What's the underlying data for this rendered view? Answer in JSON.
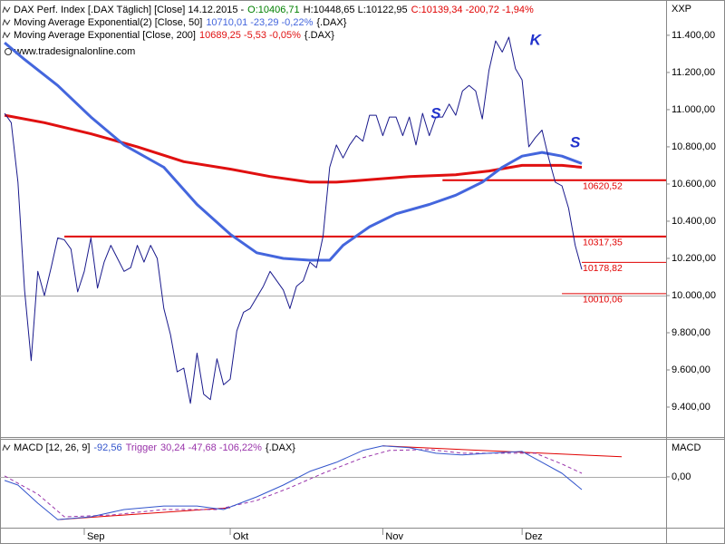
{
  "chart_data": [
    {
      "type": "line",
      "unit": "XXP",
      "source": "www.tradesignalonline.com",
      "xlim": [
        -0.7,
        99.7
      ],
      "ylim": [
        9244,
        11580
      ],
      "yticks": [
        {
          "value": 9400,
          "label": "9.400,00"
        },
        {
          "value": 9600,
          "label": "9.600,00"
        },
        {
          "value": 9800,
          "label": "9.800,00"
        },
        {
          "value": 10000,
          "label": "10.000,00"
        },
        {
          "value": 10200,
          "label": "10.200,00"
        },
        {
          "value": 10400,
          "label": "10.400,00"
        },
        {
          "value": 10600,
          "label": "10.600,00"
        },
        {
          "value": 10800,
          "label": "10.800,00"
        },
        {
          "value": 11000,
          "label": "11.000,00"
        },
        {
          "value": 11200,
          "label": "11.200,00"
        },
        {
          "value": 11400,
          "label": "11.400,00"
        }
      ],
      "reference_lines": [
        10000
      ],
      "series": [
        {
          "name": "DAX Perf. Index [.DAX  Täglich] [Close] 14.12.2015 -",
          "color": "#1a1a8c",
          "linewidth": 1,
          "legend_parts": [
            {
              "text": "O:10406,71",
              "color": "#008000"
            },
            {
              "text": "H:10448,65 L:10122,95",
              "color": "#000000"
            },
            {
              "text": "C:10139,34 -200,72 -1,94%",
              "color": "#e00000"
            }
          ],
          "values": [
            10980,
            10930,
            10610,
            10030,
            9650,
            10130,
            10000,
            10150,
            10310,
            10300,
            10250,
            10020,
            10130,
            10310,
            10040,
            10180,
            10270,
            10200,
            10130,
            10150,
            10270,
            10180,
            10270,
            10200,
            9930,
            9790,
            9590,
            9610,
            9420,
            9690,
            9470,
            9440,
            9660,
            9520,
            9550,
            9810,
            9910,
            9930,
            9990,
            10050,
            10130,
            10080,
            10030,
            9930,
            10050,
            10080,
            10180,
            10150,
            10320,
            10690,
            10810,
            10740,
            10810,
            10860,
            10830,
            10970,
            10970,
            10860,
            10960,
            10960,
            10860,
            10960,
            10810,
            10980,
            10860,
            10960,
            10960,
            11030,
            10970,
            11100,
            11130,
            11100,
            10950,
            11210,
            11370,
            11310,
            11390,
            11220,
            11160,
            10800,
            10850,
            10890,
            10740,
            10610,
            10590,
            10470,
            10270,
            10140
          ]
        },
        {
          "name": "Moving Average Exponential(2) [Close, 50]",
          "color": "#4466dd",
          "linewidth": 3,
          "legend_parts": [
            {
              "text": "10710,01 -23,29 -0,22%",
              "color": "#4466dd"
            },
            {
              "text": "{.DAX}",
              "color": "#000000"
            }
          ],
          "x": [
            0,
            3,
            8,
            13,
            18,
            24,
            29,
            34,
            38,
            42,
            46,
            49,
            51,
            55,
            59,
            64,
            68,
            72,
            75,
            78,
            81,
            84,
            87
          ],
          "values": [
            11360,
            11270,
            11130,
            10960,
            10810,
            10690,
            10490,
            10330,
            10230,
            10200,
            10190,
            10190,
            10270,
            10370,
            10440,
            10490,
            10540,
            10610,
            10690,
            10750,
            10770,
            10750,
            10710
          ]
        },
        {
          "name": "Moving Average Exponential [Close, 200]",
          "color": "#e01010",
          "linewidth": 3,
          "legend_parts": [
            {
              "text": "10689,25 -5,53 -0,05%",
              "color": "#e01010"
            },
            {
              "text": "{.DAX}",
              "color": "#000000"
            }
          ],
          "x": [
            0,
            6,
            13,
            20,
            27,
            34,
            40,
            46,
            50,
            54,
            61,
            68,
            73,
            78,
            81,
            84,
            87
          ],
          "values": [
            10970,
            10930,
            10870,
            10800,
            10720,
            10680,
            10640,
            10610,
            10610,
            10620,
            10640,
            10650,
            10670,
            10700,
            10700,
            10700,
            10690
          ]
        }
      ],
      "levels": [
        {
          "value": 10620.52,
          "label": "10620,52",
          "x_start": 66,
          "linewidth": 2
        },
        {
          "value": 10317.35,
          "label": "10317,35",
          "x_start": 9,
          "linewidth": 2
        },
        {
          "value": 10178.82,
          "label": "10178,82",
          "x_start": 87,
          "linewidth": 1
        },
        {
          "value": 10010.06,
          "label": "10010,06",
          "x_start": 84,
          "linewidth": 1
        }
      ],
      "annotations": [
        {
          "text": "S",
          "x": 65,
          "y": 10975
        },
        {
          "text": "K",
          "x": 80,
          "y": 11370
        },
        {
          "text": "S",
          "x": 86,
          "y": 10820
        }
      ]
    },
    {
      "type": "line",
      "axis_label": "MACD",
      "xlim": [
        -0.7,
        99.7
      ],
      "ylim": [
        -370,
        270
      ],
      "yticks": [
        {
          "value": 0,
          "label": "0,00"
        }
      ],
      "reference_lines": [
        0
      ],
      "xticks": [
        {
          "value": 12,
          "label": "Sep"
        },
        {
          "value": 34,
          "label": "Okt"
        },
        {
          "value": 57,
          "label": "Nov"
        },
        {
          "value": 78,
          "label": "Dez"
        }
      ],
      "series": [
        {
          "name": "MACD [12, 26, 9]",
          "color": "#3355cc",
          "linewidth": 1,
          "legend_parts": [
            {
              "text": "-92,56",
              "color": "#3355cc"
            }
          ],
          "x": [
            0,
            2,
            5,
            8,
            13,
            18,
            24,
            29,
            33,
            38,
            42,
            46,
            50,
            54,
            57,
            61,
            65,
            69,
            73,
            78,
            81,
            84,
            87
          ],
          "values": [
            -26,
            -60,
            -192,
            -311,
            -291,
            -238,
            -212,
            -212,
            -238,
            -146,
            -60,
            40,
            106,
            192,
            225,
            212,
            172,
            159,
            172,
            185,
            106,
            26,
            -93
          ]
        },
        {
          "name": "Trigger",
          "color": "#9933aa",
          "linewidth": 1,
          "dashed": true,
          "legend_parts": [
            {
              "text": "30,24 -47,68 -106,22%",
              "color": "#9933aa"
            },
            {
              "text": "{.DAX}",
              "color": "#000000"
            }
          ],
          "x": [
            0,
            5,
            9,
            16,
            24,
            32,
            38,
            43,
            48,
            54,
            58,
            64,
            69,
            76,
            80,
            84,
            87
          ],
          "values": [
            7,
            -126,
            -291,
            -278,
            -238,
            -238,
            -172,
            -79,
            26,
            139,
            192,
            199,
            172,
            172,
            172,
            93,
            26
          ]
        }
      ],
      "trendlines": [
        {
          "x": [
            8,
            34
          ],
          "values": [
            -311,
            -225
          ]
        },
        {
          "x": [
            57,
            93
          ],
          "values": [
            225,
            146
          ]
        }
      ]
    }
  ]
}
